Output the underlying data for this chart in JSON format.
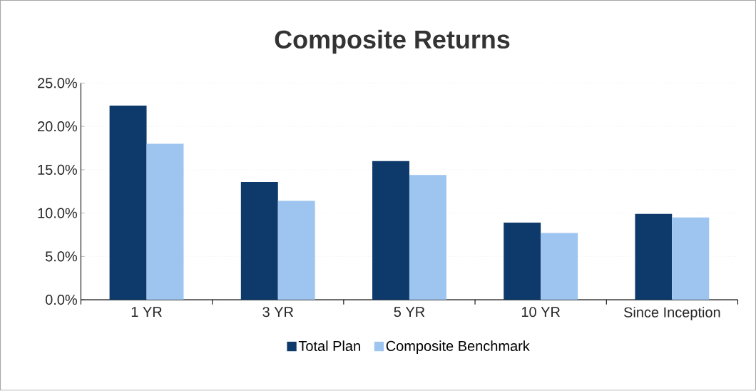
{
  "chart_data": {
    "type": "bar",
    "title": "Composite Returns",
    "categories": [
      "1 YR",
      "3 YR",
      "5 YR",
      "10 YR",
      "Since Inception"
    ],
    "series": [
      {
        "name": "Total Plan",
        "color": "#0d3a6b",
        "values": [
          22.4,
          13.6,
          16.0,
          8.9,
          9.9
        ]
      },
      {
        "name": "Composite Benchmark",
        "color": "#9ec5f0",
        "values": [
          18.0,
          11.4,
          14.4,
          7.7,
          9.5
        ]
      }
    ],
    "ylim": [
      0,
      25
    ],
    "yticks": [
      {
        "value": 0,
        "label": "0.0%"
      },
      {
        "value": 5,
        "label": "5.0%"
      },
      {
        "value": 10,
        "label": "10.0%"
      },
      {
        "value": 15,
        "label": "15.0%"
      },
      {
        "value": 20,
        "label": "20.0%"
      },
      {
        "value": 25,
        "label": "25.0%"
      }
    ],
    "grid": "y",
    "legend": "bottom"
  }
}
